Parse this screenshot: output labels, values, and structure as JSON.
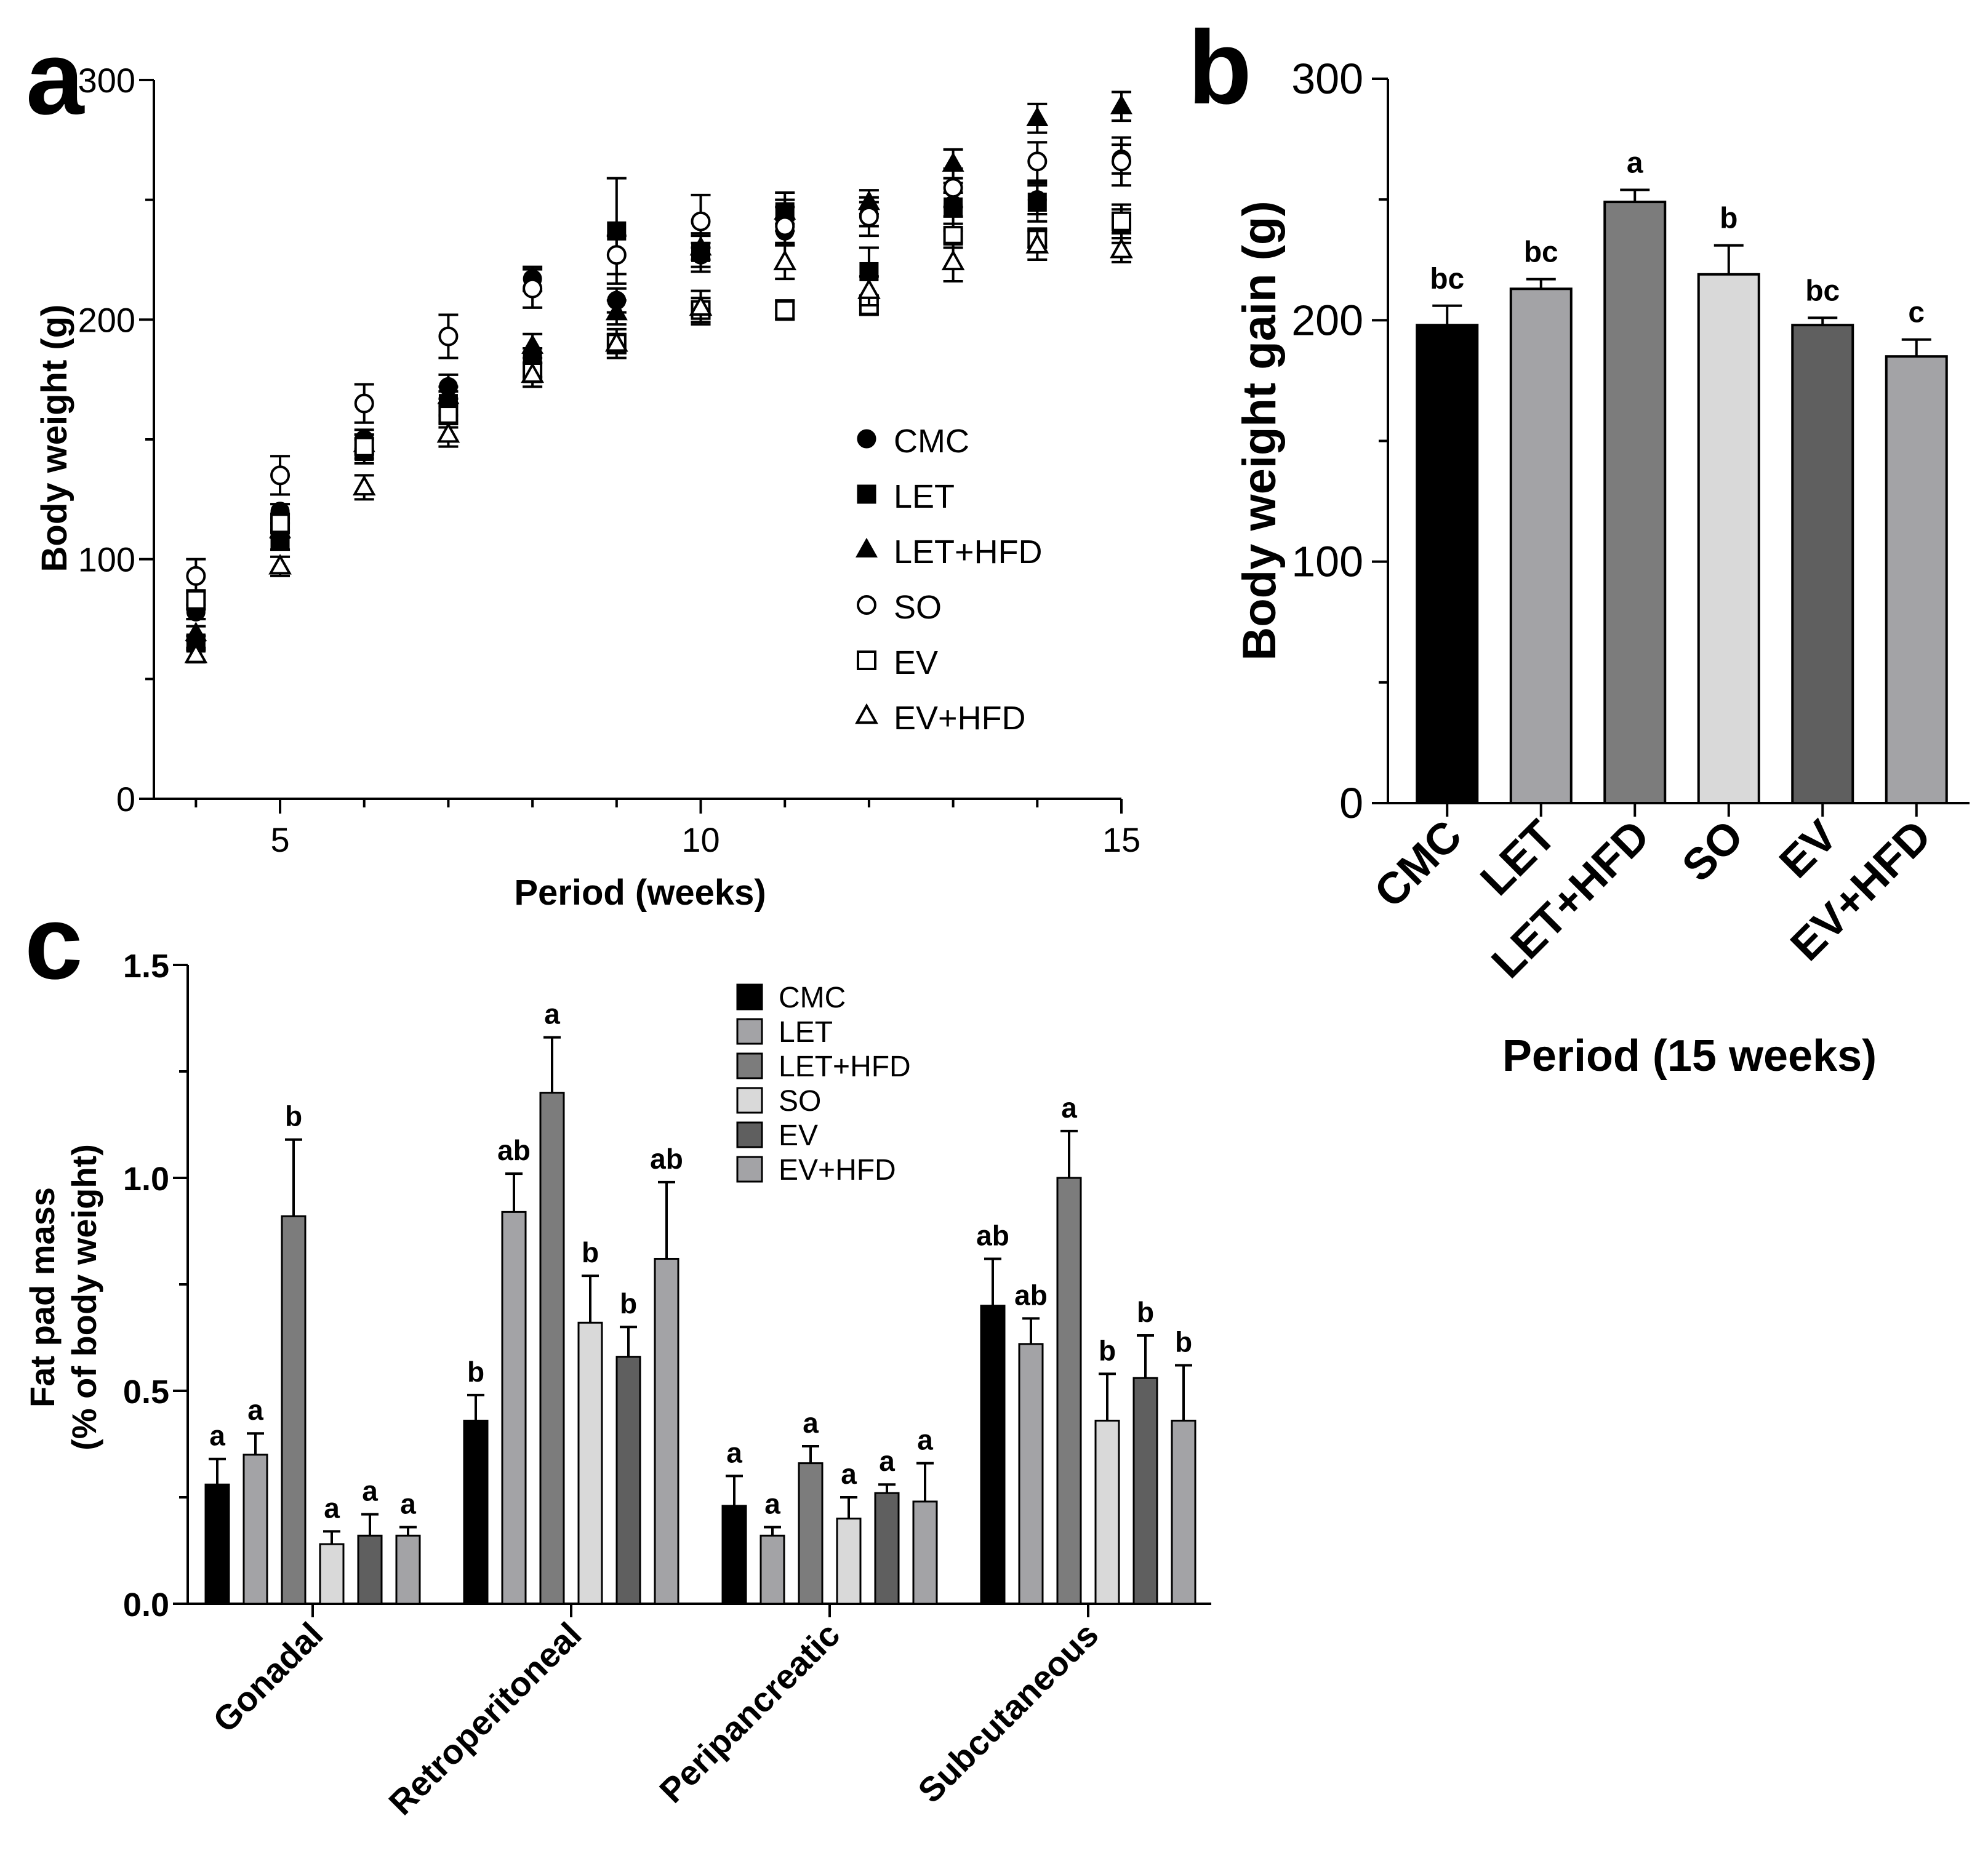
{
  "panels": {
    "a": {
      "letter": "a"
    },
    "b": {
      "letter": "b"
    },
    "c": {
      "letter": "c"
    }
  },
  "chart_data": [
    {
      "id": "a",
      "type": "scatter",
      "title": "",
      "xlabel": "Period (weeks)",
      "ylabel": "Body weight (g)",
      "xlim": [
        3.5,
        15
      ],
      "ylim": [
        0,
        300
      ],
      "xticks": [
        5,
        10,
        15
      ],
      "yticks": [
        0,
        100,
        200,
        300
      ],
      "x": [
        4,
        5,
        6,
        7,
        8,
        9,
        10,
        11,
        12,
        13,
        14,
        15
      ],
      "legend_position": "right",
      "series": [
        {
          "name": "CMC",
          "marker": "circle-filled",
          "values": [
            78,
            120,
            150,
            172,
            217,
            208,
            227,
            237,
            244,
            248,
            250,
            267
          ],
          "errors": [
            3,
            3,
            4,
            5,
            5,
            5,
            5,
            5,
            5,
            5,
            6,
            6
          ]
        },
        {
          "name": "LET",
          "marker": "square-filled",
          "values": [
            65,
            108,
            145,
            165,
            182,
            237,
            228,
            245,
            220,
            247,
            249,
            240
          ],
          "errors": [
            3,
            4,
            5,
            5,
            6,
            22,
            8,
            8,
            10,
            10,
            8,
            8
          ]
        },
        {
          "name": "LET+HFD",
          "marker": "triangle-filled",
          "values": [
            69,
            112,
            148,
            168,
            189,
            203,
            230,
            245,
            249,
            265,
            284,
            289
          ],
          "errors": [
            3,
            3,
            4,
            4,
            5,
            5,
            5,
            5,
            5,
            6,
            6,
            6
          ]
        },
        {
          "name": "SO",
          "marker": "circle-open",
          "values": [
            93,
            135,
            165,
            193,
            213,
            227,
            241,
            239,
            243,
            255,
            266,
            266
          ],
          "errors": [
            7,
            8,
            8,
            9,
            8,
            8,
            11,
            8,
            8,
            8,
            8,
            10
          ]
        },
        {
          "name": "EV",
          "marker": "square-open",
          "values": [
            83,
            115,
            147,
            160,
            178,
            190,
            204,
            204,
            206,
            235,
            234,
            241
          ],
          "errors": [
            4,
            4,
            5,
            5,
            4,
            4,
            5,
            4,
            4,
            5,
            4,
            5
          ]
        },
        {
          "name": "EV+HFD",
          "marker": "triangle-open",
          "values": [
            60,
            97,
            130,
            152,
            177,
            190,
            205,
            224,
            212,
            224,
            231,
            229
          ],
          "errors": [
            3,
            4,
            5,
            5,
            5,
            6,
            7,
            7,
            6,
            8,
            6,
            5
          ]
        }
      ]
    },
    {
      "id": "b",
      "type": "bar",
      "title": "",
      "xlabel": "Period (15 weeks)",
      "ylabel": "Body weight gain (g)",
      "ylim": [
        0,
        300
      ],
      "yticks": [
        0,
        100,
        200,
        300
      ],
      "categories": [
        "CMC",
        "LET",
        "LET+HFD",
        "SO",
        "EV",
        "EV+HFD"
      ],
      "values": [
        198,
        213,
        249,
        219,
        198,
        185
      ],
      "errors": [
        8,
        4,
        5,
        12,
        3,
        7
      ],
      "labels": [
        "bc",
        "bc",
        "a",
        "b",
        "bc",
        "c"
      ],
      "colors": [
        "#000000",
        "#a3a3a6",
        "#7c7c7c",
        "#d9d9d9",
        "#5f5f5f",
        "#a3a3a6"
      ]
    },
    {
      "id": "c",
      "type": "bar",
      "title": "",
      "xlabel": "",
      "ylabel": [
        "Fat pad mass",
        "(% of body weight)"
      ],
      "ylim": [
        0,
        1.5
      ],
      "yticks": [
        "0.0",
        "0.5",
        "1.0",
        "1.5"
      ],
      "categories": [
        "Gonadal",
        "Retroperitoneal",
        "Peripancreatic",
        "Subcutaneous"
      ],
      "legend_position": "top-center",
      "series": [
        {
          "name": "CMC",
          "color": "#000000",
          "values": [
            0.28,
            0.43,
            0.23,
            0.7
          ],
          "errors": [
            0.06,
            0.06,
            0.07,
            0.11
          ],
          "labels": [
            "a",
            "b",
            "a",
            "ab"
          ]
        },
        {
          "name": "LET",
          "color": "#a3a3a6",
          "values": [
            0.35,
            0.92,
            0.16,
            0.61
          ],
          "errors": [
            0.05,
            0.09,
            0.02,
            0.06
          ],
          "labels": [
            "a",
            "ab",
            "a",
            "ab"
          ]
        },
        {
          "name": "LET+HFD",
          "color": "#7c7c7c",
          "values": [
            0.91,
            1.2,
            0.33,
            1.0
          ],
          "errors": [
            0.18,
            0.13,
            0.04,
            0.11
          ],
          "labels": [
            "b",
            "a",
            "a",
            "a"
          ]
        },
        {
          "name": "SO",
          "color": "#d9d9d9",
          "values": [
            0.14,
            0.66,
            0.2,
            0.43
          ],
          "errors": [
            0.03,
            0.11,
            0.05,
            0.11
          ],
          "labels": [
            "a",
            "b",
            "a",
            "b"
          ]
        },
        {
          "name": "EV",
          "color": "#5f5f5f",
          "values": [
            0.16,
            0.58,
            0.26,
            0.53
          ],
          "errors": [
            0.05,
            0.07,
            0.02,
            0.1
          ],
          "labels": [
            "a",
            "b",
            "a",
            "b"
          ]
        },
        {
          "name": "EV+HFD",
          "color": "#a3a3a6",
          "values": [
            0.16,
            0.81,
            0.24,
            0.43
          ],
          "errors": [
            0.02,
            0.18,
            0.09,
            0.13
          ],
          "labels": [
            "a",
            "ab",
            "a",
            "b"
          ]
        }
      ]
    }
  ]
}
